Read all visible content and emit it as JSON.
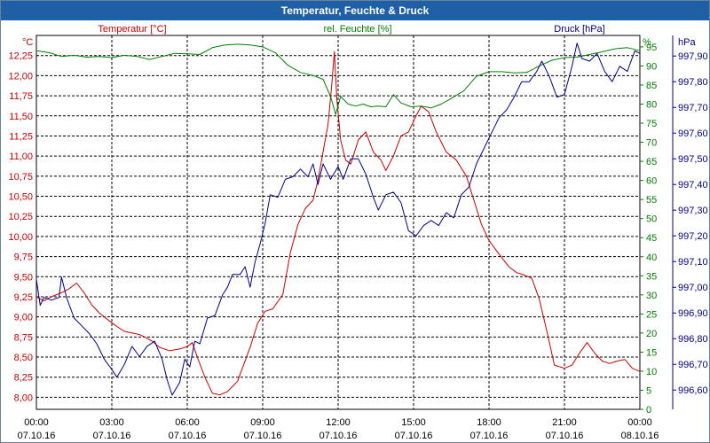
{
  "window": {
    "title": "Temperatur, Feuchte & Druck"
  },
  "colors": {
    "temperature": "#cc0000",
    "humidity": "#008000",
    "pressure": "#00008b",
    "grid": "#000000",
    "titlebar": "#1e5fa6"
  },
  "chart_data": {
    "type": "line",
    "title": "Temperatur, Feuchte & Druck",
    "grid": true,
    "x_axis": {
      "unit": "hours since 07.10.16 00:00",
      "range": [
        0,
        24
      ],
      "ticks": [
        {
          "time": "00:00",
          "date": "07.10.16",
          "hour": 0
        },
        {
          "time": "03:00",
          "date": "07.10.16",
          "hour": 3
        },
        {
          "time": "06:00",
          "date": "07.10.16",
          "hour": 6
        },
        {
          "time": "09:00",
          "date": "07.10.16",
          "hour": 9
        },
        {
          "time": "12:00",
          "date": "07.10.16",
          "hour": 12
        },
        {
          "time": "15:00",
          "date": "07.10.16",
          "hour": 15
        },
        {
          "time": "18:00",
          "date": "07.10.16",
          "hour": 18
        },
        {
          "time": "21:00",
          "date": "07.10.16",
          "hour": 21
        },
        {
          "time": "00:00",
          "date": "08.10.16",
          "hour": 24
        }
      ]
    },
    "axes": {
      "temperature": {
        "unit": "°C",
        "range": [
          7.85,
          12.5
        ],
        "ticks": [
          "8,00",
          "8,25",
          "8,50",
          "8,75",
          "9,00",
          "9,25",
          "9,50",
          "9,75",
          "10,00",
          "10,25",
          "10,50",
          "10,75",
          "11,00",
          "11,25",
          "11,50",
          "11,75",
          "12,00",
          "12,25"
        ],
        "tick_values": [
          8.0,
          8.25,
          8.5,
          8.75,
          9.0,
          9.25,
          9.5,
          9.75,
          10.0,
          10.25,
          10.5,
          10.75,
          11.0,
          11.25,
          11.5,
          11.75,
          12.0,
          12.25
        ]
      },
      "humidity": {
        "unit": "%",
        "range": [
          0,
          98
        ],
        "ticks": [
          "0",
          "5",
          "10",
          "15",
          "20",
          "25",
          "30",
          "35",
          "40",
          "45",
          "50",
          "55",
          "60",
          "65",
          "70",
          "75",
          "80",
          "85",
          "90",
          "95"
        ],
        "tick_values": [
          0,
          5,
          10,
          15,
          20,
          25,
          30,
          35,
          40,
          45,
          50,
          55,
          60,
          65,
          70,
          75,
          80,
          85,
          90,
          95
        ]
      },
      "pressure": {
        "unit": "hPa",
        "range": [
          996.525,
          997.98
        ],
        "ticks": [
          "996,60",
          "996,70",
          "996,80",
          "996,90",
          "997,00",
          "997,10",
          "997,20",
          "997,30",
          "997,40",
          "997,50",
          "997,60",
          "997,70",
          "997,80",
          "997,90"
        ],
        "tick_values": [
          996.6,
          996.7,
          996.8,
          996.9,
          997.0,
          997.1,
          997.2,
          997.3,
          997.4,
          997.5,
          997.6,
          997.7,
          997.8,
          997.9
        ]
      }
    },
    "series": [
      {
        "name": "Temperatur [°C]",
        "axis": "temperature",
        "color": "#cc0000",
        "points": [
          [
            0,
            9.25
          ],
          [
            0.3,
            9.2
          ],
          [
            0.6,
            9.25
          ],
          [
            1,
            9.3
          ],
          [
            1.3,
            9.35
          ],
          [
            1.6,
            9.42
          ],
          [
            1.9,
            9.3
          ],
          [
            2.2,
            9.15
          ],
          [
            2.5,
            9.05
          ],
          [
            2.9,
            8.95
          ],
          [
            3.2,
            8.88
          ],
          [
            3.5,
            8.82
          ],
          [
            3.8,
            8.8
          ],
          [
            4.1,
            8.78
          ],
          [
            4.3,
            8.75
          ],
          [
            4.6,
            8.7
          ],
          [
            4.9,
            8.62
          ],
          [
            5.3,
            8.58
          ],
          [
            5.7,
            8.6
          ],
          [
            6.0,
            8.63
          ],
          [
            6.2,
            8.68
          ],
          [
            6.4,
            8.5
          ],
          [
            6.7,
            8.25
          ],
          [
            7.0,
            8.05
          ],
          [
            7.3,
            8.03
          ],
          [
            7.6,
            8.07
          ],
          [
            8.0,
            8.2
          ],
          [
            8.5,
            8.62
          ],
          [
            8.8,
            8.92
          ],
          [
            9.1,
            9.07
          ],
          [
            9.4,
            9.1
          ],
          [
            9.8,
            9.28
          ],
          [
            10.1,
            9.8
          ],
          [
            10.4,
            10.15
          ],
          [
            10.7,
            10.35
          ],
          [
            11.0,
            10.45
          ],
          [
            11.2,
            10.7
          ],
          [
            11.4,
            11.05
          ],
          [
            11.6,
            11.4
          ],
          [
            11.75,
            11.9
          ],
          [
            11.85,
            12.3
          ],
          [
            11.95,
            11.7
          ],
          [
            12.1,
            11.2
          ],
          [
            12.3,
            10.95
          ],
          [
            12.5,
            10.9
          ],
          [
            12.8,
            11.2
          ],
          [
            13.1,
            11.3
          ],
          [
            13.4,
            11.05
          ],
          [
            13.7,
            10.95
          ],
          [
            13.9,
            10.82
          ],
          [
            14.2,
            11.0
          ],
          [
            14.5,
            11.25
          ],
          [
            14.8,
            11.3
          ],
          [
            15.1,
            11.5
          ],
          [
            15.3,
            11.62
          ],
          [
            15.6,
            11.55
          ],
          [
            15.9,
            11.3
          ],
          [
            16.3,
            11.05
          ],
          [
            16.7,
            10.95
          ],
          [
            17.1,
            10.75
          ],
          [
            17.4,
            10.45
          ],
          [
            17.7,
            10.15
          ],
          [
            18.0,
            9.95
          ],
          [
            18.4,
            9.78
          ],
          [
            18.8,
            9.62
          ],
          [
            19.1,
            9.55
          ],
          [
            19.4,
            9.52
          ],
          [
            19.7,
            9.48
          ],
          [
            20.0,
            9.22
          ],
          [
            20.3,
            8.82
          ],
          [
            20.6,
            8.4
          ],
          [
            21.0,
            8.36
          ],
          [
            21.3,
            8.4
          ],
          [
            21.6,
            8.55
          ],
          [
            21.9,
            8.68
          ],
          [
            22.2,
            8.55
          ],
          [
            22.5,
            8.45
          ],
          [
            22.8,
            8.42
          ],
          [
            23.1,
            8.45
          ],
          [
            23.4,
            8.47
          ],
          [
            23.7,
            8.36
          ],
          [
            24,
            8.32
          ]
        ]
      },
      {
        "name": "rel. Feuchte [%]",
        "axis": "humidity",
        "color": "#008000",
        "points": [
          [
            0,
            94
          ],
          [
            0.5,
            93.5
          ],
          [
            1,
            92.5
          ],
          [
            1.5,
            92.8
          ],
          [
            2,
            92.3
          ],
          [
            2.5,
            92.5
          ],
          [
            3,
            92.2
          ],
          [
            3.5,
            92.8
          ],
          [
            4,
            92.5
          ],
          [
            4.5,
            91.7
          ],
          [
            5,
            92.5
          ],
          [
            5.5,
            93.3
          ],
          [
            6,
            93.2
          ],
          [
            6.5,
            93
          ],
          [
            7,
            94.8
          ],
          [
            7.5,
            95.5
          ],
          [
            8,
            95.7
          ],
          [
            8.5,
            95.5
          ],
          [
            9,
            95
          ],
          [
            9.5,
            93.5
          ],
          [
            10,
            90.2
          ],
          [
            10.5,
            88.3
          ],
          [
            11,
            87.5
          ],
          [
            11.4,
            86.5
          ],
          [
            11.7,
            82
          ],
          [
            11.9,
            77.3
          ],
          [
            12.1,
            82
          ],
          [
            12.4,
            80
          ],
          [
            12.7,
            79.5
          ],
          [
            13,
            80
          ],
          [
            13.3,
            79.3
          ],
          [
            13.6,
            79.5
          ],
          [
            13.9,
            79.3
          ],
          [
            14.2,
            82.5
          ],
          [
            14.5,
            80.3
          ],
          [
            14.9,
            79.3
          ],
          [
            15.3,
            79.5
          ],
          [
            15.7,
            79
          ],
          [
            16.1,
            80
          ],
          [
            16.5,
            81.5
          ],
          [
            17,
            83.5
          ],
          [
            17.5,
            87.3
          ],
          [
            18,
            88.5
          ],
          [
            18.5,
            88.5
          ],
          [
            19,
            88.2
          ],
          [
            19.5,
            88.3
          ],
          [
            20,
            90
          ],
          [
            20.5,
            91.5
          ],
          [
            21,
            92.2
          ],
          [
            21.5,
            92.3
          ],
          [
            22,
            93
          ],
          [
            22.5,
            93.7
          ],
          [
            23,
            94.5
          ],
          [
            23.5,
            94.8
          ],
          [
            24,
            94
          ]
        ]
      },
      {
        "name": "Druck [hPa]",
        "axis": "pressure",
        "color": "#00008b",
        "points": [
          [
            0,
            997.03
          ],
          [
            0.15,
            996.93
          ],
          [
            0.3,
            996.96
          ],
          [
            0.6,
            996.95
          ],
          [
            0.9,
            996.96
          ],
          [
            1.0,
            997.04
          ],
          [
            1.2,
            996.96
          ],
          [
            1.5,
            996.88
          ],
          [
            1.8,
            996.85
          ],
          [
            2.1,
            996.82
          ],
          [
            2.4,
            996.78
          ],
          [
            2.7,
            996.72
          ],
          [
            3.0,
            996.68
          ],
          [
            3.2,
            996.65
          ],
          [
            3.5,
            996.7
          ],
          [
            3.8,
            996.77
          ],
          [
            4.1,
            996.73
          ],
          [
            4.4,
            996.77
          ],
          [
            4.7,
            996.79
          ],
          [
            5.0,
            996.72
          ],
          [
            5.2,
            996.64
          ],
          [
            5.4,
            996.58
          ],
          [
            5.7,
            996.63
          ],
          [
            5.9,
            996.72
          ],
          [
            6.1,
            996.69
          ],
          [
            6.3,
            996.79
          ],
          [
            6.5,
            996.78
          ],
          [
            6.8,
            996.88
          ],
          [
            7.1,
            996.89
          ],
          [
            7.4,
            996.97
          ],
          [
            7.6,
            997.0
          ],
          [
            7.8,
            997.05
          ],
          [
            8.1,
            997.05
          ],
          [
            8.3,
            997.08
          ],
          [
            8.5,
            997.0
          ],
          [
            8.7,
            997.1
          ],
          [
            8.9,
            997.17
          ],
          [
            9.1,
            997.25
          ],
          [
            9.3,
            997.36
          ],
          [
            9.6,
            997.35
          ],
          [
            9.9,
            997.42
          ],
          [
            10.2,
            997.43
          ],
          [
            10.5,
            997.46
          ],
          [
            10.8,
            997.43
          ],
          [
            11.0,
            997.48
          ],
          [
            11.2,
            997.4
          ],
          [
            11.4,
            997.48
          ],
          [
            11.7,
            997.42
          ],
          [
            12.0,
            997.47
          ],
          [
            12.2,
            997.42
          ],
          [
            12.5,
            997.5
          ],
          [
            12.8,
            997.5
          ],
          [
            13.1,
            997.44
          ],
          [
            13.4,
            997.35
          ],
          [
            13.6,
            997.3
          ],
          [
            13.9,
            997.36
          ],
          [
            14.2,
            997.37
          ],
          [
            14.5,
            997.33
          ],
          [
            14.8,
            997.22
          ],
          [
            15.1,
            997.2
          ],
          [
            15.4,
            997.24
          ],
          [
            15.7,
            997.26
          ],
          [
            16.0,
            997.24
          ],
          [
            16.3,
            997.29
          ],
          [
            16.6,
            997.27
          ],
          [
            16.9,
            997.36
          ],
          [
            17.2,
            997.39
          ],
          [
            17.5,
            997.48
          ],
          [
            17.8,
            997.54
          ],
          [
            18.1,
            997.6
          ],
          [
            18.4,
            997.66
          ],
          [
            18.7,
            997.69
          ],
          [
            19.0,
            997.74
          ],
          [
            19.3,
            997.8
          ],
          [
            19.6,
            997.8
          ],
          [
            19.9,
            997.84
          ],
          [
            20.1,
            997.88
          ],
          [
            20.4,
            997.82
          ],
          [
            20.7,
            997.74
          ],
          [
            21.0,
            997.75
          ],
          [
            21.3,
            997.86
          ],
          [
            21.5,
            997.95
          ],
          [
            21.7,
            997.89
          ],
          [
            22.0,
            997.88
          ],
          [
            22.3,
            997.91
          ],
          [
            22.6,
            997.84
          ],
          [
            22.9,
            997.8
          ],
          [
            23.2,
            997.86
          ],
          [
            23.5,
            997.84
          ],
          [
            23.8,
            997.92
          ],
          [
            24,
            997.91
          ]
        ]
      }
    ]
  }
}
